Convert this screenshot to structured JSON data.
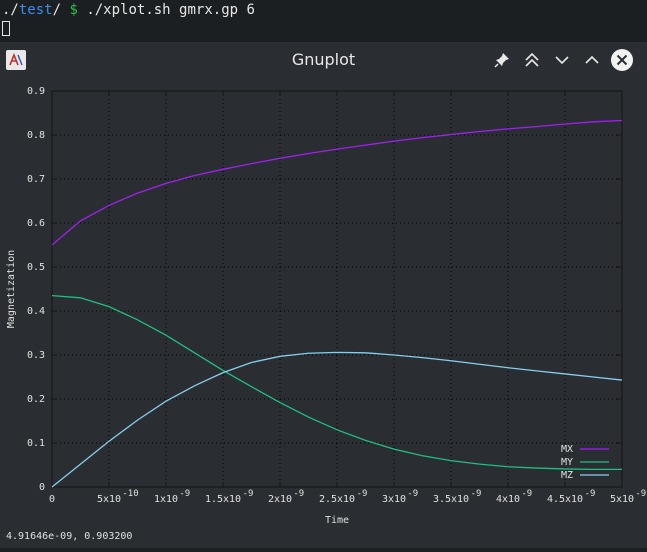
{
  "terminal": {
    "dir_prefix": "./",
    "dir_name": "test",
    "dir_suffix": "/",
    "prompt": "$",
    "command": "./xplot.sh gmrx.gp 6"
  },
  "window": {
    "title": "Gnuplot",
    "buttons": [
      "pin-icon",
      "keep-above-icon",
      "minimize-icon",
      "maximize-icon",
      "close-icon"
    ]
  },
  "status_text": "4.91646e-09,  0.903200",
  "chart_data": {
    "type": "line",
    "xlabel": "Time",
    "ylabel": "Magnetization",
    "xlim": [
      0,
      5e-09
    ],
    "ylim": [
      0,
      0.9
    ],
    "grid": true,
    "legend_placement": "bottom-right",
    "yticks": [
      "0",
      "0.1",
      "0.2",
      "0.3",
      "0.4",
      "0.5",
      "0.6",
      "0.7",
      "0.8",
      "0.9"
    ],
    "xticks": [
      {
        "base": "0",
        "exp": ""
      },
      {
        "base": "5x10",
        "exp": "-10"
      },
      {
        "base": "1x10",
        "exp": "-9"
      },
      {
        "base": "1.5x10",
        "exp": "-9"
      },
      {
        "base": "2x10",
        "exp": "-9"
      },
      {
        "base": "2.5x10",
        "exp": "-9"
      },
      {
        "base": "3x10",
        "exp": "-9"
      },
      {
        "base": "3.5x10",
        "exp": "-9"
      },
      {
        "base": "4x10",
        "exp": "-9"
      },
      {
        "base": "4.5x10",
        "exp": "-9"
      },
      {
        "base": "5x10",
        "exp": "-9"
      }
    ],
    "x": [
      0,
      2.5e-10,
      5e-10,
      7.5e-10,
      1e-09,
      1.25e-09,
      1.5e-09,
      1.75e-09,
      2e-09,
      2.25e-09,
      2.5e-09,
      2.75e-09,
      3e-09,
      3.25e-09,
      3.5e-09,
      3.75e-09,
      4e-09,
      4.25e-09,
      4.5e-09,
      4.75e-09,
      5e-09
    ],
    "series": [
      {
        "name": "MX",
        "color": "#a020f0",
        "values": [
          0.55,
          0.605,
          0.64,
          0.668,
          0.69,
          0.708,
          0.722,
          0.735,
          0.747,
          0.758,
          0.768,
          0.777,
          0.786,
          0.794,
          0.801,
          0.808,
          0.814,
          0.819,
          0.825,
          0.83,
          0.833
        ]
      },
      {
        "name": "MY",
        "color": "#1fbf7f",
        "values": [
          0.435,
          0.43,
          0.41,
          0.38,
          0.345,
          0.305,
          0.265,
          0.228,
          0.192,
          0.159,
          0.13,
          0.106,
          0.086,
          0.071,
          0.06,
          0.052,
          0.046,
          0.043,
          0.041,
          0.04,
          0.04
        ]
      },
      {
        "name": "MZ",
        "color": "#87ceeb",
        "values": [
          0.0,
          0.052,
          0.104,
          0.152,
          0.195,
          0.23,
          0.26,
          0.283,
          0.297,
          0.304,
          0.306,
          0.305,
          0.3,
          0.294,
          0.287,
          0.279,
          0.271,
          0.264,
          0.257,
          0.25,
          0.243
        ]
      }
    ]
  }
}
